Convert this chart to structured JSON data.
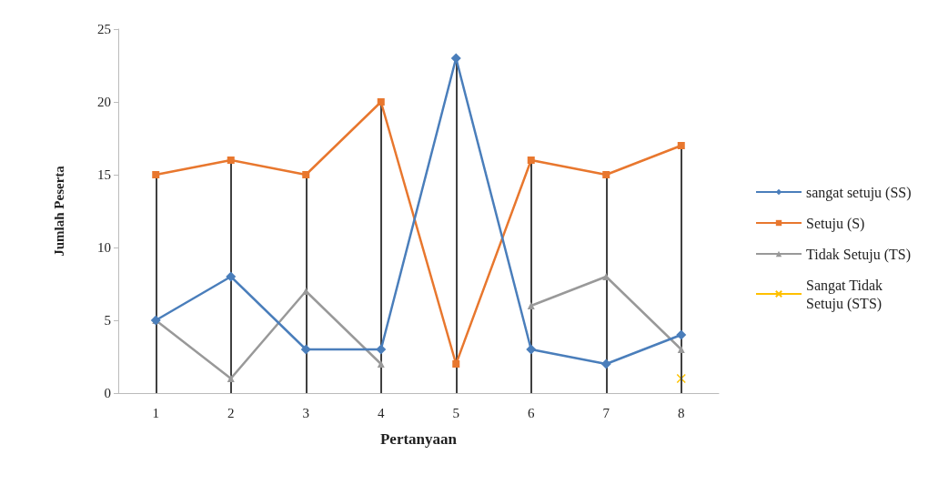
{
  "chart_data": {
    "type": "line",
    "xlabel": "Pertanyaan",
    "ylabel": "Jumlah Peserta",
    "categories": [
      "1",
      "2",
      "3",
      "4",
      "5",
      "6",
      "7",
      "8"
    ],
    "series": [
      {
        "name": "sangat setuju (SS)",
        "color": "#4a7ebb",
        "marker": "diamond",
        "values": [
          5,
          8,
          3,
          3,
          23,
          3,
          2,
          4
        ]
      },
      {
        "name": "Setuju (S)",
        "color": "#e8772e",
        "marker": "square",
        "values": [
          15,
          16,
          15,
          20,
          2,
          16,
          15,
          17
        ]
      },
      {
        "name": "Tidak Setuju (TS)",
        "color": "#999999",
        "marker": "triangle",
        "values": [
          5,
          1,
          7,
          2,
          null,
          6,
          8,
          3
        ]
      },
      {
        "name": "Sangat Tidak Setuju (STS)",
        "color": "#ffc000",
        "marker": "cross",
        "values": [
          null,
          null,
          null,
          null,
          null,
          null,
          null,
          1
        ]
      }
    ],
    "ref_lines": [
      {
        "axis": "x",
        "value": "1",
        "color": "#404040"
      },
      {
        "axis": "x",
        "value": "2",
        "color": "#404040"
      },
      {
        "axis": "x",
        "value": "3",
        "color": "#404040"
      },
      {
        "axis": "x",
        "value": "4",
        "color": "#404040"
      },
      {
        "axis": "x",
        "value": "5",
        "color": "#404040"
      },
      {
        "axis": "x",
        "value": "6",
        "color": "#404040"
      },
      {
        "axis": "x",
        "value": "7",
        "color": "#404040"
      },
      {
        "axis": "x",
        "value": "8",
        "color": "#404040"
      }
    ],
    "ylim": [
      0,
      25
    ],
    "yticks": [
      0,
      5,
      10,
      15,
      20,
      25
    ],
    "grid": false,
    "legend": "right"
  }
}
